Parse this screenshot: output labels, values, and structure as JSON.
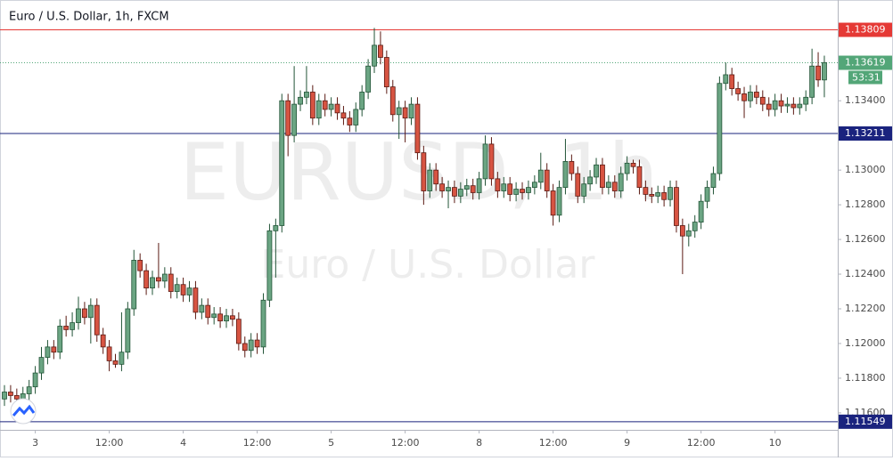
{
  "chart_data": {
    "type": "candlestick",
    "title": "Euro / U.S. Dollar, 1h, FXCM",
    "watermark": [
      "EURUSD, 1h",
      "Euro / U.S. Dollar"
    ],
    "categories": [
      null,
      null,
      null,
      null,
      null,
      "3",
      null,
      null,
      null,
      null,
      null,
      null,
      null,
      null,
      null,
      null,
      null,
      "12:00",
      null,
      null,
      null,
      null,
      null,
      null,
      null,
      null,
      null,
      null,
      null,
      "4",
      null,
      null,
      null,
      null,
      null,
      null,
      null,
      null,
      null,
      null,
      null,
      "12:00",
      null,
      null,
      null,
      null,
      null,
      null,
      null,
      null,
      null,
      null,
      null,
      "5",
      null,
      null,
      null,
      null,
      null,
      null,
      null,
      null,
      null,
      null,
      null,
      "12:00",
      null,
      null,
      null,
      null,
      null,
      null,
      null,
      null,
      null,
      null,
      null,
      "8",
      null,
      null,
      null,
      null,
      null,
      null,
      null,
      null,
      null,
      null,
      null,
      "12:00",
      null,
      null,
      null,
      null,
      null,
      null,
      null,
      null,
      null,
      null,
      null,
      "9",
      null,
      null,
      null,
      null,
      null,
      null,
      null,
      null,
      null,
      null,
      null,
      "12:00",
      null,
      null,
      null,
      null,
      null,
      null,
      null,
      null,
      null,
      null,
      null,
      "10",
      null,
      null,
      null,
      null,
      null,
      null,
      null,
      null
    ],
    "open": [
      1.1168,
      1.1172,
      1.117,
      1.1168,
      1.1171,
      1.1175,
      1.1183,
      1.1192,
      1.1198,
      1.1195,
      1.121,
      1.1208,
      1.1212,
      1.122,
      1.1215,
      1.1222,
      1.1205,
      1.1198,
      1.119,
      1.1188,
      1.1195,
      1.122,
      1.1248,
      1.1242,
      1.1232,
      1.1238,
      1.1236,
      1.124,
      1.123,
      1.1234,
      1.1228,
      1.1232,
      1.1218,
      1.1222,
      1.1215,
      1.1217,
      1.1213,
      1.1216,
      1.1214,
      1.12,
      1.1196,
      1.1202,
      1.1198,
      1.1225,
      1.1265,
      1.1268,
      1.134,
      1.132,
      1.1338,
      1.1342,
      1.1345,
      1.133,
      1.134,
      1.1335,
      1.1338,
      1.1333,
      1.133,
      1.1326,
      1.1335,
      1.1345,
      1.136,
      1.1372,
      1.1365,
      1.1348,
      1.1332,
      1.1336,
      1.133,
      1.1338,
      1.131,
      1.1288,
      1.13,
      1.1292,
      1.1288,
      1.129,
      1.1285,
      1.1289,
      1.1291,
      1.1287,
      1.1295,
      1.1315,
      1.1295,
      1.1288,
      1.1292,
      1.1286,
      1.1289,
      1.1287,
      1.129,
      1.1293,
      1.13,
      1.1288,
      1.1274,
      1.129,
      1.1305,
      1.1298,
      1.1285,
      1.1292,
      1.1296,
      1.1303,
      1.129,
      1.1293,
      1.1288,
      1.1298,
      1.1304,
      1.1302,
      1.129,
      1.1286,
      1.1285,
      1.1287,
      1.1283,
      1.129,
      1.1268,
      1.1262,
      1.1265,
      1.127,
      1.1282,
      1.129,
      1.1298,
      1.135,
      1.1355,
      1.1347,
      1.1344,
      1.134,
      1.1345,
      1.1342,
      1.1338,
      1.1335,
      1.134,
      1.1337,
      1.1338,
      1.1336,
      1.1338,
      1.1342,
      1.136,
      1.1352
    ],
    "high": [
      1.1176,
      1.1176,
      1.1174,
      1.1175,
      1.1179,
      1.1187,
      1.1198,
      1.1202,
      1.1202,
      1.1214,
      1.1216,
      1.1218,
      1.1227,
      1.1224,
      1.1226,
      1.1226,
      1.1209,
      1.1202,
      1.1194,
      1.1218,
      1.1224,
      1.1254,
      1.1252,
      1.1246,
      1.1242,
      1.1258,
      1.1244,
      1.1244,
      1.1238,
      1.1238,
      1.1236,
      1.1236,
      1.1226,
      1.1226,
      1.1221,
      1.1221,
      1.122,
      1.122,
      1.1218,
      1.1204,
      1.1206,
      1.1206,
      1.1229,
      1.1269,
      1.1272,
      1.1344,
      1.1344,
      1.136,
      1.1346,
      1.136,
      1.1349,
      1.1344,
      1.1344,
      1.1342,
      1.1342,
      1.1337,
      1.1334,
      1.1339,
      1.1349,
      1.1364,
      1.1382,
      1.138,
      1.1369,
      1.1352,
      1.134,
      1.134,
      1.1342,
      1.1342,
      1.1314,
      1.1304,
      1.1304,
      1.1296,
      1.1294,
      1.1294,
      1.1293,
      1.1295,
      1.1295,
      1.1299,
      1.132,
      1.1319,
      1.1299,
      1.1296,
      1.1296,
      1.1293,
      1.1293,
      1.1294,
      1.1297,
      1.131,
      1.1304,
      1.1292,
      1.1294,
      1.1318,
      1.1309,
      1.1302,
      1.1296,
      1.13,
      1.1307,
      1.1307,
      1.1297,
      1.1297,
      1.1302,
      1.1308,
      1.1306,
      1.1306,
      1.1294,
      1.129,
      1.1291,
      1.1291,
      1.1294,
      1.1294,
      1.1272,
      1.1269,
      1.1274,
      1.1286,
      1.1294,
      1.1302,
      1.1354,
      1.1362,
      1.1359,
      1.1351,
      1.1348,
      1.1349,
      1.1349,
      1.1346,
      1.1342,
      1.1344,
      1.1344,
      1.1342,
      1.1342,
      1.1342,
      1.1346,
      1.137,
      1.1368,
      1.1366
    ],
    "low": [
      1.1164,
      1.1166,
      1.1164,
      1.1164,
      1.1167,
      1.1171,
      1.1179,
      1.1188,
      1.1191,
      1.1191,
      1.1204,
      1.1204,
      1.1208,
      1.1211,
      1.12,
      1.1201,
      1.1194,
      1.1184,
      1.1186,
      1.1184,
      1.1191,
      1.1216,
      1.1238,
      1.1228,
      1.1228,
      1.1232,
      1.1232,
      1.1226,
      1.1226,
      1.1224,
      1.1224,
      1.1214,
      1.1214,
      1.1211,
      1.1211,
      1.1209,
      1.1209,
      1.121,
      1.1196,
      1.1192,
      1.1192,
      1.1194,
      1.1194,
      1.1221,
      1.1238,
      1.1264,
      1.1308,
      1.1316,
      1.1334,
      1.1338,
      1.1326,
      1.1326,
      1.1331,
      1.1331,
      1.1329,
      1.1326,
      1.1322,
      1.1322,
      1.1331,
      1.1341,
      1.1356,
      1.1361,
      1.1344,
      1.1328,
      1.1318,
      1.1316,
      1.1326,
      1.1306,
      1.128,
      1.1284,
      1.1288,
      1.1284,
      1.1278,
      1.1281,
      1.1281,
      1.1285,
      1.1283,
      1.1283,
      1.1291,
      1.1291,
      1.1284,
      1.1284,
      1.1282,
      1.1282,
      1.1283,
      1.1283,
      1.1286,
      1.1289,
      1.1284,
      1.1268,
      1.127,
      1.1286,
      1.1294,
      1.1281,
      1.1281,
      1.1288,
      1.1292,
      1.1286,
      1.1286,
      1.1284,
      1.1284,
      1.1294,
      1.1298,
      1.1286,
      1.1282,
      1.1281,
      1.1281,
      1.1279,
      1.1279,
      1.1264,
      1.124,
      1.1256,
      1.1261,
      1.1266,
      1.1278,
      1.1286,
      1.1294,
      1.1346,
      1.1343,
      1.134,
      1.133,
      1.1336,
      1.1338,
      1.1334,
      1.1331,
      1.1331,
      1.1333,
      1.1333,
      1.1332,
      1.1332,
      1.1334,
      1.1338,
      1.1348,
      1.1342
    ],
    "close": [
      1.1172,
      1.117,
      1.1168,
      1.1171,
      1.1175,
      1.1183,
      1.1192,
      1.1198,
      1.1195,
      1.121,
      1.1208,
      1.1212,
      1.122,
      1.1215,
      1.1222,
      1.1205,
      1.1198,
      1.119,
      1.1188,
      1.1195,
      1.122,
      1.1248,
      1.1242,
      1.1232,
      1.1238,
      1.1236,
      1.124,
      1.123,
      1.1234,
      1.1228,
      1.1232,
      1.1218,
      1.1222,
      1.1215,
      1.1217,
      1.1213,
      1.1216,
      1.1214,
      1.12,
      1.1196,
      1.1202,
      1.1198,
      1.1225,
      1.1265,
      1.1268,
      1.134,
      1.132,
      1.1338,
      1.1342,
      1.1345,
      1.133,
      1.134,
      1.1335,
      1.1338,
      1.1333,
      1.133,
      1.1326,
      1.1335,
      1.1345,
      1.136,
      1.1372,
      1.1365,
      1.1348,
      1.1332,
      1.1336,
      1.133,
      1.1338,
      1.131,
      1.1288,
      1.13,
      1.1292,
      1.1288,
      1.129,
      1.1285,
      1.1289,
      1.1291,
      1.1287,
      1.1295,
      1.1315,
      1.1295,
      1.1288,
      1.1292,
      1.1286,
      1.1289,
      1.1287,
      1.129,
      1.1293,
      1.13,
      1.1288,
      1.1274,
      1.129,
      1.1305,
      1.1298,
      1.1285,
      1.1292,
      1.1296,
      1.1303,
      1.129,
      1.1293,
      1.1288,
      1.1298,
      1.1304,
      1.1302,
      1.129,
      1.1286,
      1.1285,
      1.1287,
      1.1283,
      1.129,
      1.1268,
      1.1262,
      1.1265,
      1.127,
      1.1282,
      1.129,
      1.1298,
      1.135,
      1.1355,
      1.1347,
      1.1344,
      1.134,
      1.1345,
      1.1342,
      1.1338,
      1.1335,
      1.134,
      1.1337,
      1.1338,
      1.1336,
      1.1338,
      1.1342,
      1.136,
      1.1352,
      1.1362
    ],
    "up_color": "#6ba583",
    "down_color": "#d75442",
    "ylim": [
      1.11502,
      1.13981
    ],
    "yticks": [
      {
        "value": 1.116,
        "label": "1.11600"
      },
      {
        "value": 1.118,
        "label": "1.11800"
      },
      {
        "value": 1.12,
        "label": "1.12000"
      },
      {
        "value": 1.122,
        "label": "1.12200"
      },
      {
        "value": 1.124,
        "label": "1.12400"
      },
      {
        "value": 1.126,
        "label": "1.12600"
      },
      {
        "value": 1.128,
        "label": "1.12800"
      },
      {
        "value": 1.13,
        "label": "1.13000"
      },
      {
        "value": 1.132,
        "label": "1.13200"
      },
      {
        "value": 1.134,
        "label": "1.13400"
      }
    ],
    "levels": [
      {
        "value": 1.13809,
        "color": "#e53935"
      },
      {
        "value": 1.13211,
        "color": "#1a237e"
      },
      {
        "value": 1.11549,
        "color": "#1a237e"
      }
    ],
    "last_price": 1.13619,
    "last_price_color": "#53a678",
    "countdown": "53:31"
  }
}
